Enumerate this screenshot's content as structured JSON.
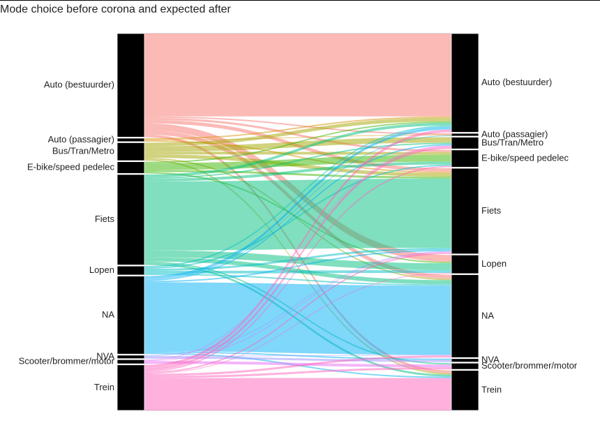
{
  "chart_data": {
    "type": "sankey",
    "title": "Mode choice before corona and expected after",
    "nodes": [
      {
        "name": "Auto (bestuurder)",
        "color": "#F8766D"
      },
      {
        "name": "Auto (passagier)",
        "color": "#D89000"
      },
      {
        "name": "Bus/Tran/Metro",
        "color": "#A3A500"
      },
      {
        "name": "E-bike/speed pedelec",
        "color": "#39B600"
      },
      {
        "name": "Fiets",
        "color": "#00BF7D"
      },
      {
        "name": "Lopen",
        "color": "#00BFC4"
      },
      {
        "name": "NA",
        "color": "#00B0F6"
      },
      {
        "name": "NVA",
        "color": "#9590FF"
      },
      {
        "name": "Scooter/brommer/motor",
        "color": "#E76BF3"
      },
      {
        "name": "Trein",
        "color": "#FF62BC"
      }
    ],
    "flows": [
      {
        "source": "Auto (bestuurder)",
        "target": "Auto (bestuurder)",
        "value": 120
      },
      {
        "source": "Auto (bestuurder)",
        "target": "Auto (passagier)",
        "value": 2
      },
      {
        "source": "Auto (bestuurder)",
        "target": "E-bike/speed pedelec",
        "value": 3
      },
      {
        "source": "Auto (bestuurder)",
        "target": "Fiets",
        "value": 5
      },
      {
        "source": "Auto (bestuurder)",
        "target": "Lopen",
        "value": 10
      },
      {
        "source": "Auto (bestuurder)",
        "target": "NA",
        "value": 6
      },
      {
        "source": "Auto (bestuurder)",
        "target": "Trein",
        "value": 4
      },
      {
        "source": "Auto (passagier)",
        "target": "Auto (bestuurder)",
        "value": 2
      },
      {
        "source": "Auto (passagier)",
        "target": "Auto (passagier)",
        "value": 1
      },
      {
        "source": "Auto (passagier)",
        "target": "Fiets",
        "value": 2
      },
      {
        "source": "Bus/Tran/Metro",
        "target": "Auto (bestuurder)",
        "value": 5
      },
      {
        "source": "Bus/Tran/Metro",
        "target": "Bus/Tran/Metro",
        "value": 8
      },
      {
        "source": "Bus/Tran/Metro",
        "target": "E-bike/speed pedelec",
        "value": 4
      },
      {
        "source": "Bus/Tran/Metro",
        "target": "Fiets",
        "value": 5
      },
      {
        "source": "Bus/Tran/Metro",
        "target": "NA",
        "value": 2
      },
      {
        "source": "Bus/Tran/Metro",
        "target": "Trein",
        "value": 2
      },
      {
        "source": "E-bike/speed pedelec",
        "target": "Auto (bestuurder)",
        "value": 2
      },
      {
        "source": "E-bike/speed pedelec",
        "target": "E-bike/speed pedelec",
        "value": 10
      },
      {
        "source": "E-bike/speed pedelec",
        "target": "Fiets",
        "value": 3
      },
      {
        "source": "E-bike/speed pedelec",
        "target": "Lopen",
        "value": 2
      },
      {
        "source": "Fiets",
        "target": "Auto (bestuurder)",
        "value": 4
      },
      {
        "source": "Fiets",
        "target": "Bus/Tran/Metro",
        "value": 2
      },
      {
        "source": "Fiets",
        "target": "E-bike/speed pedelec",
        "value": 4
      },
      {
        "source": "Fiets",
        "target": "Fiets",
        "value": 100
      },
      {
        "source": "Fiets",
        "target": "Lopen",
        "value": 10
      },
      {
        "source": "Fiets",
        "target": "NA",
        "value": 6
      },
      {
        "source": "Fiets",
        "target": "Scooter/brommer/motor",
        "value": 2
      },
      {
        "source": "Fiets",
        "target": "Trein",
        "value": 3
      },
      {
        "source": "Lopen",
        "target": "Auto (bestuurder)",
        "value": 2
      },
      {
        "source": "Lopen",
        "target": "E-bike/speed pedelec",
        "value": 2
      },
      {
        "source": "Lopen",
        "target": "Fiets",
        "value": 3
      },
      {
        "source": "Lopen",
        "target": "Lopen",
        "value": 4
      },
      {
        "source": "Lopen",
        "target": "NA",
        "value": 2
      },
      {
        "source": "NA",
        "target": "Auto (bestuurder)",
        "value": 4
      },
      {
        "source": "NA",
        "target": "Auto (passagier)",
        "value": 1
      },
      {
        "source": "NA",
        "target": "Bus/Tran/Metro",
        "value": 2
      },
      {
        "source": "NA",
        "target": "Fiets",
        "value": 2
      },
      {
        "source": "NA",
        "target": "NA",
        "value": 100
      },
      {
        "source": "NA",
        "target": "NVA",
        "value": 2
      },
      {
        "source": "NA",
        "target": "Trein",
        "value": 2
      },
      {
        "source": "NVA",
        "target": "Fiets",
        "value": 1
      },
      {
        "source": "NVA",
        "target": "NA",
        "value": 1
      },
      {
        "source": "NVA",
        "target": "NVA",
        "value": 3
      },
      {
        "source": "Scooter/brommer/motor",
        "target": "Bus/Tran/Metro",
        "value": 1
      },
      {
        "source": "Scooter/brommer/motor",
        "target": "Fiets",
        "value": 1
      },
      {
        "source": "Scooter/brommer/motor",
        "target": "Scooter/brommer/motor",
        "value": 4
      },
      {
        "source": "Trein",
        "target": "Auto (bestuurder)",
        "value": 4
      },
      {
        "source": "Trein",
        "target": "Bus/Tran/Metro",
        "value": 4
      },
      {
        "source": "Trein",
        "target": "E-bike/speed pedelec",
        "value": 2
      },
      {
        "source": "Trein",
        "target": "Fiets",
        "value": 2
      },
      {
        "source": "Trein",
        "target": "Lopen",
        "value": 1
      },
      {
        "source": "Trein",
        "target": "NA",
        "value": 3
      },
      {
        "source": "Trein",
        "target": "Scooter/brommer/motor",
        "value": 3
      },
      {
        "source": "Trein",
        "target": "Trein",
        "value": 47
      }
    ]
  }
}
